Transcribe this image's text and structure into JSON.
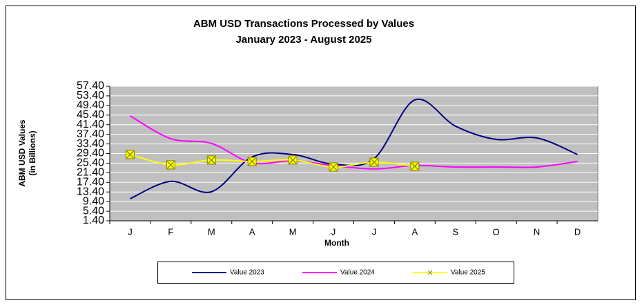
{
  "chart_data": {
    "type": "line",
    "title": "ABM USD Transactions Processed by Values",
    "subtitle": "January 2023 - August 2025",
    "x_label": "Month",
    "y_label": "ABM USD Values",
    "y_label_sub": "(in Billions)",
    "categories": [
      "J",
      "F",
      "M",
      "A",
      "M",
      "J",
      "J",
      "A",
      "S",
      "O",
      "N",
      "D"
    ],
    "series": [
      {
        "name": "Value 2023",
        "color": "#000080",
        "marker": false,
        "values": [
          10.6,
          17.8,
          13.5,
          28.0,
          29.0,
          25.0,
          27.3,
          51.7,
          40.8,
          35.3,
          35.9,
          29.0
        ]
      },
      {
        "name": "Value 2024",
        "color": "#ff00ff",
        "marker": false,
        "values": [
          45.1,
          35.6,
          33.6,
          25.5,
          26.4,
          24.4,
          23.0,
          24.4,
          23.8,
          23.8,
          23.8,
          26.1
        ]
      },
      {
        "name": "Value 2025",
        "color": "#ffff00",
        "marker": true,
        "values": [
          29.0,
          24.7,
          26.7,
          26.1,
          26.7,
          23.8,
          25.8,
          24.1,
          null,
          null,
          null,
          null
        ]
      }
    ],
    "ylim": [
      1.4,
      57.4
    ],
    "yticks": [
      {
        "value": 1.4,
        "label": "1.40"
      },
      {
        "value": 5.4,
        "label": "5.40"
      },
      {
        "value": 9.4,
        "label": "9.40"
      },
      {
        "value": 13.4,
        "label": "13.40"
      },
      {
        "value": 17.4,
        "label": "17.40"
      },
      {
        "value": 21.4,
        "label": "21.40"
      },
      {
        "value": 25.4,
        "label": "25.40"
      },
      {
        "value": 29.4,
        "label": "29.40"
      },
      {
        "value": 33.4,
        "label": "33.40"
      },
      {
        "value": 37.4,
        "label": "37.40"
      },
      {
        "value": 41.4,
        "label": "41.40"
      },
      {
        "value": 45.4,
        "label": "45.40"
      },
      {
        "value": 49.4,
        "label": "49.40"
      },
      {
        "value": 53.4,
        "label": "53.40"
      },
      {
        "value": 57.4,
        "label": "57.40"
      }
    ],
    "grid": true,
    "smooth": true,
    "legend": "bottom"
  }
}
